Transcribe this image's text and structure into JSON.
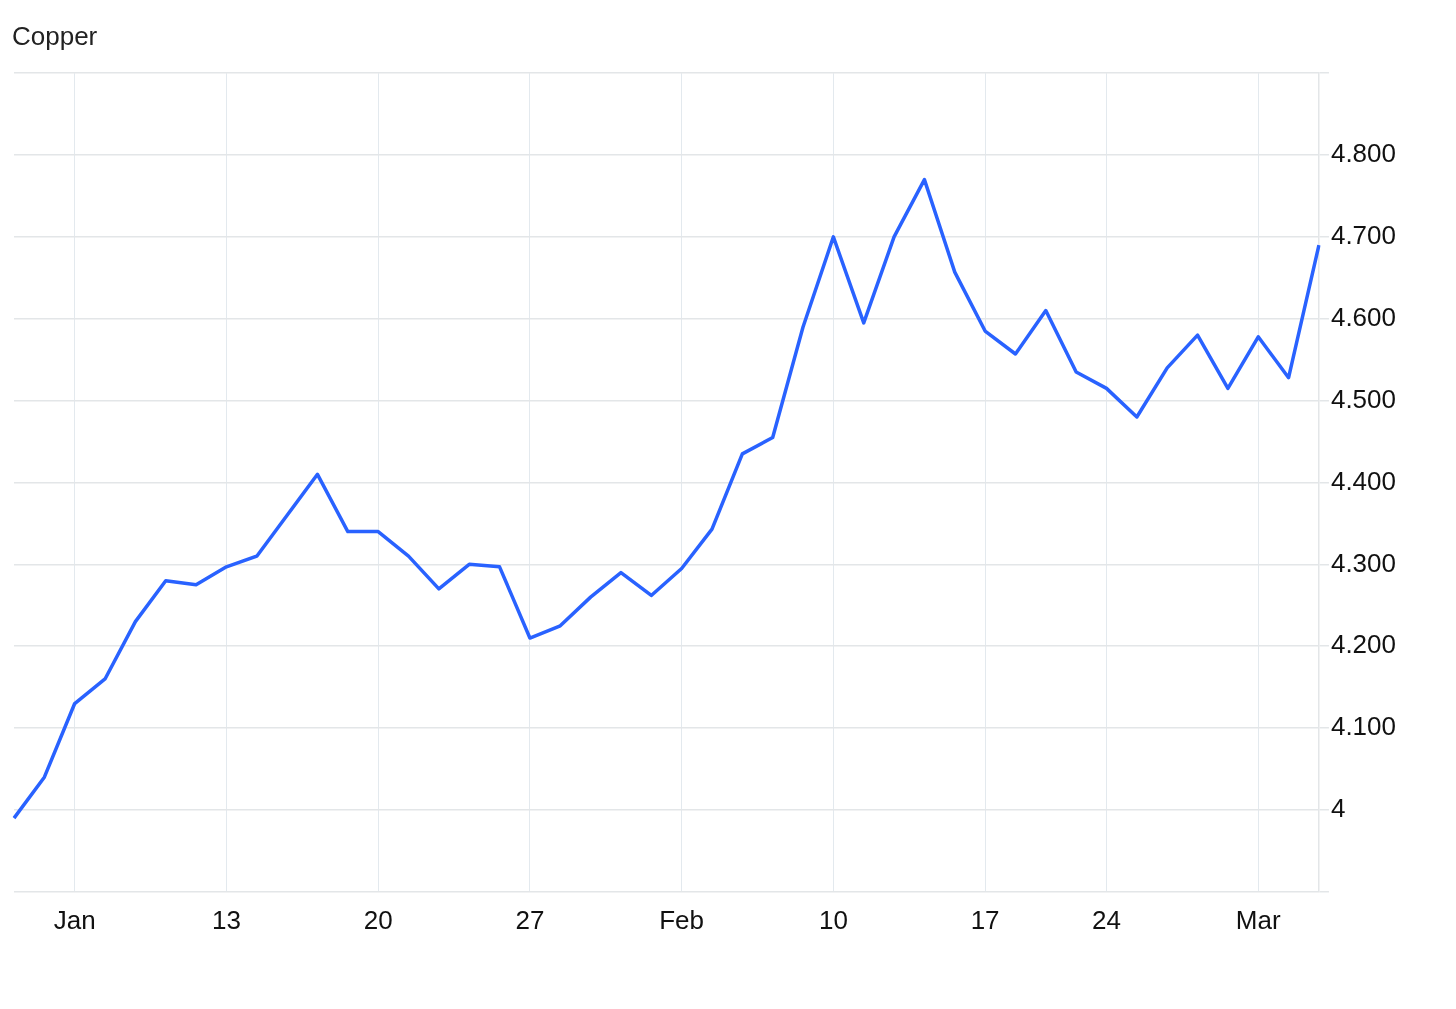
{
  "chart_data": {
    "type": "line",
    "title": "Copper",
    "categories": [
      null,
      null,
      "Jan",
      null,
      null,
      null,
      null,
      "13",
      null,
      null,
      null,
      null,
      "20",
      null,
      null,
      null,
      null,
      "27",
      null,
      null,
      null,
      null,
      "Feb",
      null,
      null,
      null,
      null,
      "10",
      null,
      null,
      null,
      null,
      "17",
      null,
      null,
      null,
      "24",
      null,
      null,
      null,
      null,
      "Mar",
      null,
      null
    ],
    "series": [
      {
        "color": "#2962ff",
        "values": [
          3.99,
          4.04,
          4.13,
          4.16,
          4.23,
          4.28,
          4.275,
          4.297,
          4.31,
          4.36,
          4.41,
          4.34,
          4.34,
          4.31,
          4.27,
          4.3,
          4.297,
          4.21,
          4.225,
          4.26,
          4.29,
          4.262,
          4.295,
          4.343,
          4.435,
          4.455,
          4.59,
          4.7,
          4.595,
          4.7,
          4.77,
          4.657,
          4.585,
          4.557,
          4.61,
          4.535,
          4.515,
          4.48,
          4.54,
          4.58,
          4.515,
          4.578,
          4.528,
          4.69
        ]
      }
    ],
    "ylim": [
      3.9,
      4.9
    ],
    "yticks": [
      {
        "value": 3.9,
        "label": null
      },
      4,
      {
        "value": 4.1,
        "label": "4.100"
      },
      {
        "value": 4.2,
        "label": "4.200"
      },
      {
        "value": 4.3,
        "label": "4.300"
      },
      {
        "value": 4.4,
        "label": "4.400"
      },
      {
        "value": 4.5,
        "label": "4.500"
      },
      {
        "value": 4.6,
        "label": "4.600"
      },
      {
        "value": 4.7,
        "label": "4.700"
      },
      {
        "value": 4.8,
        "label": "4.800"
      },
      {
        "value": 4.9,
        "label": null
      }
    ],
    "grid": true,
    "legend": false,
    "marker": "none",
    "line_style": "solid"
  }
}
